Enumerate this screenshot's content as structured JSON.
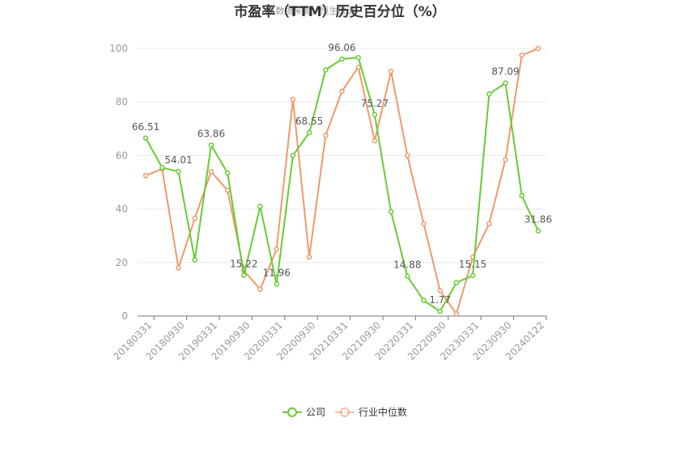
{
  "chart_data": {
    "type": "line",
    "title": "市盈率（TTM）历史百分位（%）",
    "watermark": "数据来源：恒生聚源",
    "xlabel": "",
    "ylabel": "",
    "ylim": [
      0,
      100
    ],
    "yticks": [
      0,
      20,
      40,
      60,
      80,
      100
    ],
    "grid": true,
    "legend_position": "bottom",
    "x_tick_labels": [
      "20180331",
      "20180930",
      "20190331",
      "20190930",
      "20200331",
      "20200930",
      "20210331",
      "20210930",
      "20220331",
      "20220930",
      "20230331",
      "20230930",
      "20240122"
    ],
    "series": [
      {
        "name": "公司",
        "color": "#66cc33",
        "values": [
          66.51,
          55.5,
          54.01,
          21.0,
          63.86,
          53.5,
          15.22,
          41.0,
          11.96,
          60.0,
          68.55,
          92.0,
          96.06,
          96.6,
          75.27,
          39.0,
          14.88,
          5.8,
          1.77,
          12.5,
          15.15,
          83.0,
          87.09,
          45.0,
          31.86
        ],
        "labels": [
          "66.51",
          null,
          "54.01",
          null,
          "63.86",
          null,
          "15.22",
          null,
          "11.96",
          null,
          "68.55",
          null,
          "96.06",
          null,
          "75.27",
          null,
          "14.88",
          null,
          "1.77",
          null,
          "15.15",
          null,
          "87.09",
          null,
          "31.86"
        ]
      },
      {
        "name": "行业中位数",
        "color": "#f0996b",
        "values": [
          52.5,
          55.0,
          18.0,
          36.5,
          54.0,
          47.0,
          17.0,
          10.0,
          25.0,
          81.0,
          22.0,
          67.5,
          84.0,
          93.0,
          65.5,
          91.5,
          60.0,
          34.5,
          9.5,
          0.8,
          22.0,
          34.5,
          58.5,
          97.5,
          100.0
        ],
        "labels": []
      }
    ]
  }
}
